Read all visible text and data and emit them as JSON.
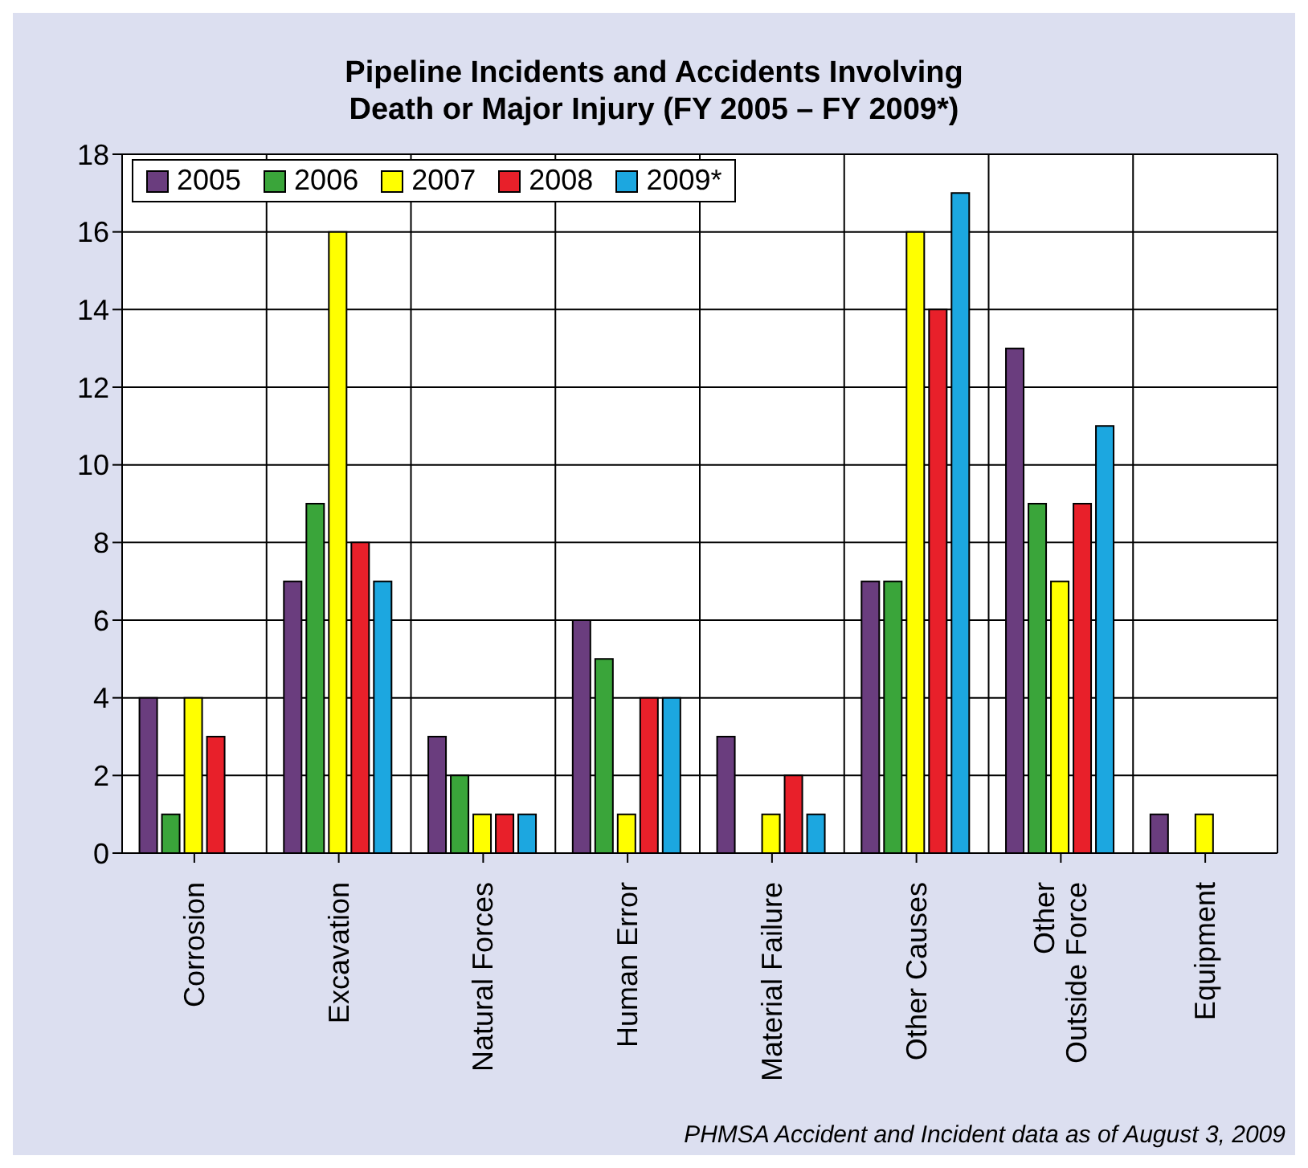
{
  "chart_data": {
    "type": "bar",
    "title": "Pipeline Incidents and Accidents Involving\nDeath or Major Injury (FY 2005 – FY 2009*)",
    "categories": [
      "Corrosion",
      "Excavation",
      "Natural Forces",
      "Human Error",
      "Material Failure",
      "Other Causes",
      "Other\nOutside Force",
      "Equipment"
    ],
    "series": [
      {
        "name": "2005",
        "color": "#6a3d7e",
        "values": [
          4,
          7,
          3,
          6,
          3,
          7,
          13,
          1
        ]
      },
      {
        "name": "2006",
        "color": "#3aa53a",
        "values": [
          1,
          9,
          2,
          5,
          0,
          7,
          9,
          0
        ]
      },
      {
        "name": "2007",
        "color": "#ffff00",
        "values": [
          4,
          16,
          1,
          1,
          1,
          16,
          7,
          1
        ]
      },
      {
        "name": "2008",
        "color": "#e8202a",
        "values": [
          3,
          8,
          1,
          4,
          2,
          14,
          9,
          0
        ]
      },
      {
        "name": "2009*",
        "color": "#1ca7e0",
        "values": [
          0,
          7,
          1,
          4,
          1,
          17,
          11,
          0
        ]
      }
    ],
    "ylim": [
      0,
      18
    ],
    "yticks": [
      0,
      2,
      4,
      6,
      8,
      10,
      12,
      14,
      16,
      18
    ],
    "grid": true,
    "legend": "top left",
    "annotations": [
      "PHMSA Accident and Incident data as of August 3, 2009"
    ]
  }
}
